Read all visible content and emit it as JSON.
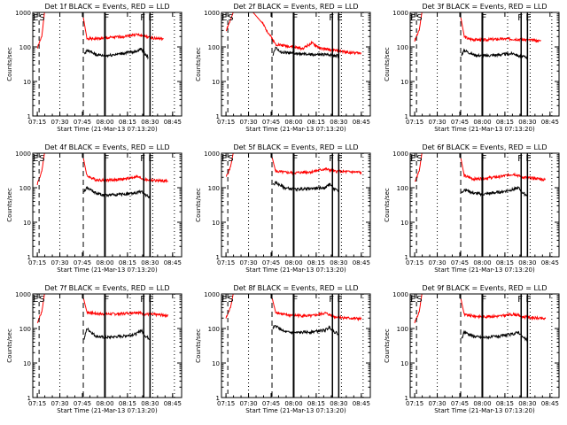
{
  "chart_data": [
    {
      "type": "line",
      "title": "Det 1f BLACK = Events, RED = LLD",
      "xlabel": "Start Time (21-Mar-13 07:13:20)",
      "ylabel": "Counts/sec",
      "ylim": [
        1,
        1000
      ],
      "y_scale": "log",
      "x_ticks": [
        "07:15",
        "07:30",
        "07:45",
        "08:00",
        "08:15",
        "08:30",
        "08:45"
      ],
      "y_ticks": [
        "1",
        "10",
        "100",
        "1000"
      ],
      "markers": [
        "E",
        "S",
        "F",
        "F",
        "E"
      ],
      "series": [
        {
          "color": "#ff0000",
          "values": [
            [
              7.25,
              90
            ],
            [
              7.3,
              200
            ],
            [
              7.33,
              1000
            ],
            [
              7.75,
              1000
            ],
            [
              7.8,
              180
            ],
            [
              7.85,
              170
            ],
            [
              8.0,
              180
            ],
            [
              8.2,
              200
            ],
            [
              8.35,
              230
            ],
            [
              8.45,
              200
            ],
            [
              8.55,
              180
            ],
            [
              8.65,
              170
            ]
          ]
        },
        {
          "color": "#000000",
          "values": [
            [
              7.77,
              60
            ],
            [
              7.8,
              80
            ],
            [
              7.9,
              60
            ],
            [
              8.0,
              55
            ],
            [
              8.2,
              65
            ],
            [
              8.35,
              75
            ],
            [
              8.4,
              90
            ],
            [
              8.45,
              60
            ],
            [
              8.48,
              50
            ]
          ]
        }
      ]
    },
    {
      "type": "line",
      "title": "Det 2f BLACK = Events, RED = LLD",
      "xlabel": "Start Time (21-Mar-13 07:13:20)",
      "ylabel": "Counts/sec",
      "ylim": [
        1,
        1000
      ],
      "y_scale": "log",
      "x_ticks": [
        "07:15",
        "07:30",
        "07:45",
        "08:00",
        "08:15",
        "08:30",
        "08:45"
      ],
      "y_ticks": [
        "1",
        "10",
        "100",
        "1000"
      ],
      "markers": [
        "E",
        "S",
        "F",
        "F",
        "E"
      ],
      "series": [
        {
          "color": "#ff0000",
          "values": [
            [
              7.25,
              300
            ],
            [
              7.3,
              600
            ],
            [
              7.33,
              1000
            ],
            [
              7.55,
              1000
            ],
            [
              7.65,
              500
            ],
            [
              7.8,
              120
            ],
            [
              8.0,
              100
            ],
            [
              8.1,
              90
            ],
            [
              8.2,
              130
            ],
            [
              8.3,
              90
            ],
            [
              8.45,
              80
            ],
            [
              8.6,
              70
            ],
            [
              8.75,
              65
            ]
          ]
        },
        {
          "color": "#000000",
          "values": [
            [
              7.77,
              60
            ],
            [
              7.8,
              100
            ],
            [
              7.85,
              70
            ],
            [
              8.0,
              65
            ],
            [
              8.2,
              60
            ],
            [
              8.4,
              60
            ],
            [
              8.5,
              55
            ]
          ]
        }
      ]
    },
    {
      "type": "line",
      "title": "Det 3f BLACK = Events, RED = LLD",
      "xlabel": "Start Time (21-Mar-13 07:13:20)",
      "ylabel": "Counts/sec",
      "ylim": [
        1,
        1000
      ],
      "y_scale": "log",
      "x_ticks": [
        "07:15",
        "07:30",
        "07:45",
        "08:00",
        "08:15",
        "08:30",
        "08:45"
      ],
      "y_ticks": [
        "1",
        "10",
        "100",
        "1000"
      ],
      "markers": [
        "E",
        "S",
        "F",
        "F",
        "E"
      ],
      "series": [
        {
          "color": "#ff0000",
          "values": [
            [
              7.25,
              150
            ],
            [
              7.3,
              300
            ],
            [
              7.33,
              1000
            ],
            [
              7.75,
              1000
            ],
            [
              7.8,
              200
            ],
            [
              7.85,
              170
            ],
            [
              8.0,
              160
            ],
            [
              8.2,
              170
            ],
            [
              8.35,
              170
            ],
            [
              8.5,
              160
            ],
            [
              8.65,
              150
            ]
          ]
        },
        {
          "color": "#000000",
          "values": [
            [
              7.77,
              60
            ],
            [
              7.8,
              80
            ],
            [
              7.9,
              60
            ],
            [
              8.0,
              55
            ],
            [
              8.2,
              60
            ],
            [
              8.35,
              65
            ],
            [
              8.4,
              55
            ],
            [
              8.5,
              50
            ]
          ]
        }
      ]
    },
    {
      "type": "line",
      "title": "Det 4f BLACK = Events, RED = LLD",
      "xlabel": "Start Time (21-Mar-13 07:13:20)",
      "ylabel": "Counts/sec",
      "ylim": [
        1,
        1000
      ],
      "y_scale": "log",
      "x_ticks": [
        "07:15",
        "07:30",
        "07:45",
        "08:00",
        "08:15",
        "08:30",
        "08:45"
      ],
      "y_ticks": [
        "1",
        "10",
        "100",
        "1000"
      ],
      "markers": [
        "E",
        "S",
        "F",
        "F",
        "E"
      ],
      "series": [
        {
          "color": "#ff0000",
          "values": [
            [
              7.25,
              130
            ],
            [
              7.3,
              300
            ],
            [
              7.33,
              1000
            ],
            [
              7.75,
              1000
            ],
            [
              7.8,
              220
            ],
            [
              7.9,
              170
            ],
            [
              8.0,
              165
            ],
            [
              8.2,
              175
            ],
            [
              8.35,
              210
            ],
            [
              8.45,
              170
            ],
            [
              8.6,
              160
            ],
            [
              8.7,
              155
            ]
          ]
        },
        {
          "color": "#000000",
          "values": [
            [
              7.77,
              80
            ],
            [
              7.8,
              100
            ],
            [
              7.9,
              70
            ],
            [
              8.0,
              60
            ],
            [
              8.2,
              65
            ],
            [
              8.35,
              70
            ],
            [
              8.4,
              80
            ],
            [
              8.45,
              60
            ],
            [
              8.5,
              55
            ]
          ]
        }
      ]
    },
    {
      "type": "line",
      "title": "Det 5f BLACK = Events, RED = LLD",
      "xlabel": "Start Time (21-Mar-13 07:13:20)",
      "ylabel": "Counts/sec",
      "ylim": [
        1,
        1000
      ],
      "y_scale": "log",
      "x_ticks": [
        "07:15",
        "07:30",
        "07:45",
        "08:00",
        "08:15",
        "08:30",
        "08:45"
      ],
      "y_ticks": [
        "1",
        "10",
        "100",
        "1000"
      ],
      "markers": [
        "E",
        "S",
        "F",
        "F",
        "E"
      ],
      "series": [
        {
          "color": "#ff0000",
          "values": [
            [
              7.25,
              200
            ],
            [
              7.3,
              400
            ],
            [
              7.33,
              1000
            ],
            [
              7.75,
              1000
            ],
            [
              7.8,
              300
            ],
            [
              7.9,
              280
            ],
            [
              8.0,
              270
            ],
            [
              8.2,
              290
            ],
            [
              8.35,
              350
            ],
            [
              8.45,
              300
            ],
            [
              8.6,
              290
            ],
            [
              8.75,
              280
            ]
          ]
        },
        {
          "color": "#000000",
          "values": [
            [
              7.77,
              120
            ],
            [
              7.8,
              140
            ],
            [
              7.9,
              100
            ],
            [
              8.0,
              90
            ],
            [
              8.2,
              95
            ],
            [
              8.35,
              100
            ],
            [
              8.4,
              130
            ],
            [
              8.45,
              90
            ],
            [
              8.5,
              80
            ]
          ]
        }
      ]
    },
    {
      "type": "line",
      "title": "Det 6f BLACK = Events, RED = LLD",
      "xlabel": "Start Time (21-Mar-13 07:13:20)",
      "ylabel": "Counts/sec",
      "ylim": [
        1,
        1000
      ],
      "y_scale": "log",
      "x_ticks": [
        "07:15",
        "07:30",
        "07:45",
        "08:00",
        "08:15",
        "08:30",
        "08:45"
      ],
      "y_ticks": [
        "1",
        "10",
        "100",
        "1000"
      ],
      "markers": [
        "E",
        "S",
        "F",
        "F",
        "E"
      ],
      "series": [
        {
          "color": "#ff0000",
          "values": [
            [
              7.25,
              150
            ],
            [
              7.3,
              300
            ],
            [
              7.33,
              1000
            ],
            [
              7.75,
              1000
            ],
            [
              7.8,
              220
            ],
            [
              7.9,
              180
            ],
            [
              8.0,
              185
            ],
            [
              8.2,
              210
            ],
            [
              8.35,
              250
            ],
            [
              8.45,
              200
            ],
            [
              8.6,
              185
            ],
            [
              8.7,
              170
            ]
          ]
        },
        {
          "color": "#000000",
          "values": [
            [
              7.77,
              70
            ],
            [
              7.8,
              90
            ],
            [
              7.9,
              70
            ],
            [
              8.0,
              65
            ],
            [
              8.2,
              75
            ],
            [
              8.35,
              90
            ],
            [
              8.4,
              100
            ],
            [
              8.45,
              70
            ],
            [
              8.5,
              60
            ]
          ]
        }
      ]
    },
    {
      "type": "line",
      "title": "Det 7f BLACK = Events, RED = LLD",
      "xlabel": "Start Time (21-Mar-13 07:13:20)",
      "ylabel": "Counts/sec",
      "ylim": [
        1,
        1000
      ],
      "y_scale": "log",
      "x_ticks": [
        "07:15",
        "07:30",
        "07:45",
        "08:00",
        "08:15",
        "08:30",
        "08:45"
      ],
      "y_ticks": [
        "1",
        "10",
        "100",
        "1000"
      ],
      "markers": [
        "E",
        "S",
        "F",
        "F",
        "E"
      ],
      "series": [
        {
          "color": "#ff0000",
          "values": [
            [
              7.25,
              150
            ],
            [
              7.3,
              300
            ],
            [
              7.33,
              1000
            ],
            [
              7.75,
              1000
            ],
            [
              7.8,
              300
            ],
            [
              7.9,
              270
            ],
            [
              8.0,
              260
            ],
            [
              8.2,
              270
            ],
            [
              8.35,
              300
            ],
            [
              8.45,
              260
            ],
            [
              8.6,
              250
            ],
            [
              8.7,
              240
            ]
          ]
        },
        {
          "color": "#000000",
          "values": [
            [
              7.77,
              50
            ],
            [
              7.8,
              100
            ],
            [
              7.9,
              60
            ],
            [
              8.0,
              55
            ],
            [
              8.2,
              60
            ],
            [
              8.35,
              70
            ],
            [
              8.4,
              90
            ],
            [
              8.45,
              60
            ],
            [
              8.5,
              50
            ]
          ]
        }
      ]
    },
    {
      "type": "line",
      "title": "Det 8f BLACK = Events, RED = LLD",
      "xlabel": "Start Time (21-Mar-13 07:13:20)",
      "ylabel": "Counts/sec",
      "ylim": [
        1,
        1000
      ],
      "y_scale": "log",
      "x_ticks": [
        "07:15",
        "07:30",
        "07:45",
        "08:00",
        "08:15",
        "08:30",
        "08:45"
      ],
      "y_ticks": [
        "1",
        "10",
        "100",
        "1000"
      ],
      "markers": [
        "E",
        "S",
        "F",
        "F",
        "E"
      ],
      "series": [
        {
          "color": "#ff0000",
          "values": [
            [
              7.25,
              200
            ],
            [
              7.3,
              400
            ],
            [
              7.33,
              1000
            ],
            [
              7.75,
              1000
            ],
            [
              7.8,
              300
            ],
            [
              7.9,
              250
            ],
            [
              8.0,
              240
            ],
            [
              8.2,
              230
            ],
            [
              8.35,
              280
            ],
            [
              8.45,
              220
            ],
            [
              8.6,
              200
            ],
            [
              8.75,
              190
            ]
          ]
        },
        {
          "color": "#000000",
          "values": [
            [
              7.77,
              100
            ],
            [
              7.8,
              120
            ],
            [
              7.9,
              80
            ],
            [
              8.0,
              75
            ],
            [
              8.2,
              80
            ],
            [
              8.35,
              90
            ],
            [
              8.4,
              110
            ],
            [
              8.45,
              80
            ],
            [
              8.5,
              70
            ]
          ]
        }
      ]
    },
    {
      "type": "line",
      "title": "Det 9f BLACK = Events, RED = LLD",
      "xlabel": "Start Time (21-Mar-13 07:13:20)",
      "ylabel": "Counts/sec",
      "ylim": [
        1,
        1000
      ],
      "y_scale": "log",
      "x_ticks": [
        "07:15",
        "07:30",
        "07:45",
        "08:00",
        "08:15",
        "08:30",
        "08:45"
      ],
      "y_ticks": [
        "1",
        "10",
        "100",
        "1000"
      ],
      "markers": [
        "E",
        "S",
        "F",
        "F",
        "E"
      ],
      "series": [
        {
          "color": "#ff0000",
          "values": [
            [
              7.25,
              150
            ],
            [
              7.3,
              300
            ],
            [
              7.33,
              1000
            ],
            [
              7.75,
              1000
            ],
            [
              7.8,
              250
            ],
            [
              7.9,
              230
            ],
            [
              8.0,
              220
            ],
            [
              8.2,
              230
            ],
            [
              8.35,
              260
            ],
            [
              8.45,
              220
            ],
            [
              8.6,
              200
            ],
            [
              8.7,
              190
            ]
          ]
        },
        {
          "color": "#000000",
          "values": [
            [
              7.77,
              50
            ],
            [
              7.8,
              80
            ],
            [
              7.9,
              60
            ],
            [
              8.0,
              55
            ],
            [
              8.2,
              60
            ],
            [
              8.35,
              70
            ],
            [
              8.4,
              80
            ],
            [
              8.45,
              55
            ],
            [
              8.5,
              45
            ]
          ]
        }
      ]
    }
  ]
}
